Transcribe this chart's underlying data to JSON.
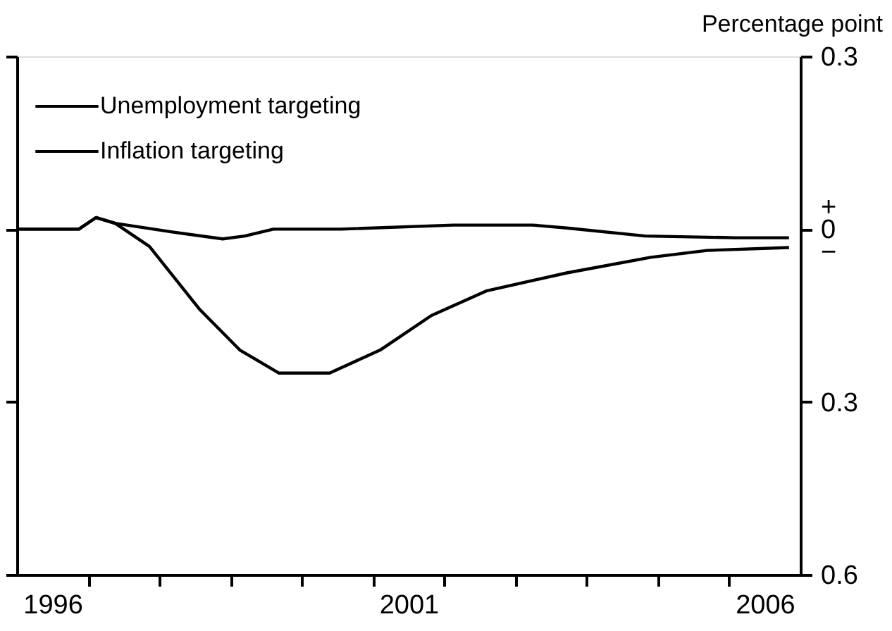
{
  "chart_data": {
    "type": "line",
    "ylabel": "Percentage point",
    "xlim": [
      1996,
      2007
    ],
    "xticks": [
      {
        "value": 1996.5,
        "label": "1996"
      },
      {
        "value": 1997,
        "label": null
      },
      {
        "value": 1998,
        "label": null
      },
      {
        "value": 1999,
        "label": null
      },
      {
        "value": 2000,
        "label": null
      },
      {
        "value": 2001,
        "label": null
      },
      {
        "value": 2001.5,
        "label": "2001"
      },
      {
        "value": 2002,
        "label": null
      },
      {
        "value": 2003,
        "label": null
      },
      {
        "value": 2004,
        "label": null
      },
      {
        "value": 2005,
        "label": null
      },
      {
        "value": 2006,
        "label": null
      },
      {
        "value": 2006.5,
        "label": "2006"
      }
    ],
    "ylim": [
      -0.6,
      0.3
    ],
    "yticks": [
      0.3,
      {
        "value": 0,
        "label": "+\n0\n−"
      },
      {
        "value": -0.3,
        "label": "0.3"
      },
      {
        "value": -0.6,
        "label": "0.6"
      }
    ],
    "legend": "top left",
    "grid": false,
    "marker": "none",
    "line_style": "solid",
    "series": [
      {
        "name": "Unemployment targeting",
        "color": "#000000",
        "x": [
          1996.0,
          1996.87,
          1997.11,
          1997.38,
          1997.86,
          1998.57,
          1999.13,
          1999.68,
          2000.39,
          2001.1,
          2001.82,
          2002.6,
          2003.72,
          2004.9,
          2005.69,
          2006.84
        ],
        "values": [
          0,
          0,
          0.02,
          0.01,
          -0.03,
          -0.14,
          -0.21,
          -0.25,
          -0.25,
          -0.21,
          -0.15,
          -0.107,
          -0.076,
          -0.049,
          -0.037,
          -0.032
        ]
      },
      {
        "name": "Inflation targeting",
        "color": "#000000",
        "x": [
          1996.0,
          1996.87,
          1997.11,
          1997.38,
          1998.18,
          1998.89,
          1999.2,
          1999.6,
          2000.55,
          2002.13,
          2003.24,
          2003.72,
          2004.82,
          2006.09,
          2006.84
        ],
        "values": [
          0,
          0,
          0.02,
          0.01,
          -0.005,
          -0.017,
          -0.012,
          0,
          0,
          0.007,
          0.007,
          0.002,
          -0.012,
          -0.015,
          -0.015
        ]
      }
    ]
  }
}
